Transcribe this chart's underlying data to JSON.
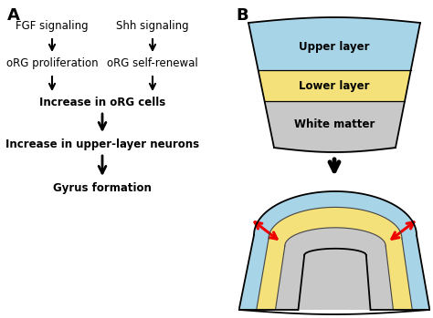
{
  "panel_a_label": "A",
  "panel_b_label": "B",
  "background_color": "#ffffff",
  "text_color": "#000000",
  "upper_layer_color": "#a8d4e8",
  "lower_layer_color": "#f5e17a",
  "white_matter_color": "#c8c8c8",
  "outline_color": "#000000",
  "red_color": "#ee0000",
  "upper_layer_label": "Upper layer",
  "lower_layer_label": "Lower layer",
  "white_matter_label": "White matter",
  "figsize": [
    4.74,
    3.49
  ],
  "dpi": 100
}
